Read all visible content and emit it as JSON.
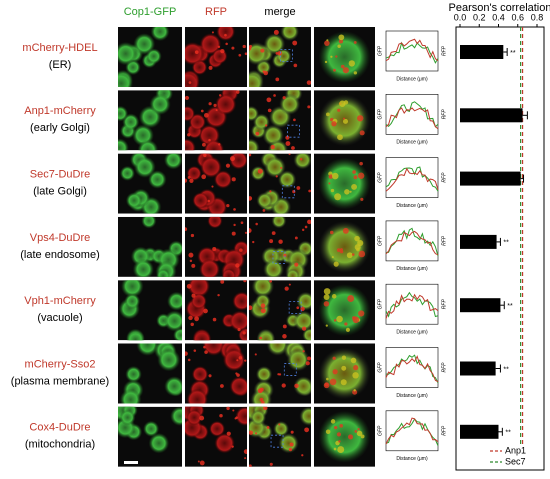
{
  "figure": {
    "column_headers": [
      "Cop1-GFP",
      "RFP",
      "merge"
    ],
    "rows": [
      {
        "marker": "mCherry-HDEL",
        "location": "(ER)"
      },
      {
        "marker": "Anp1-mCherry",
        "location": "(early Golgi)"
      },
      {
        "marker": "Sec7-DuDre",
        "location": "(late Golgi)"
      },
      {
        "marker": "Vps4-DuDre",
        "location": "(late endosome)"
      },
      {
        "marker": "Vph1-mCherry",
        "location": "(vacuole)"
      },
      {
        "marker": "mCherry-Sso2",
        "location": "(plasma membrane)"
      },
      {
        "marker": "Cox4-DuDre",
        "location": "(mitochondria)"
      }
    ],
    "profile_axes": {
      "y_left": "GFP",
      "y_right": "RFP",
      "x": "Distance (μm)"
    }
  },
  "chart_data": {
    "type": "bar",
    "orientation": "horizontal",
    "title": "Pearson's correlation",
    "values": [
      0.45,
      0.65,
      0.63,
      0.38,
      0.42,
      0.37,
      0.4
    ],
    "errors": [
      0.04,
      0.05,
      0.03,
      0.04,
      0.04,
      0.05,
      0.04
    ],
    "significance": [
      "**",
      null,
      null,
      "**",
      "**",
      "**",
      "**"
    ],
    "color": "#000000",
    "xlim": [
      0,
      0.8
    ],
    "xticks": [
      {
        "value": 0,
        "label": "0.0"
      },
      0.2,
      0.4,
      0.6,
      0.8
    ],
    "reference_lines": [
      {
        "name": "Anp1",
        "value": 0.65,
        "color": "#c0392b"
      },
      {
        "name": "Sec7",
        "value": 0.63,
        "color": "#2e8b2e"
      }
    ]
  }
}
